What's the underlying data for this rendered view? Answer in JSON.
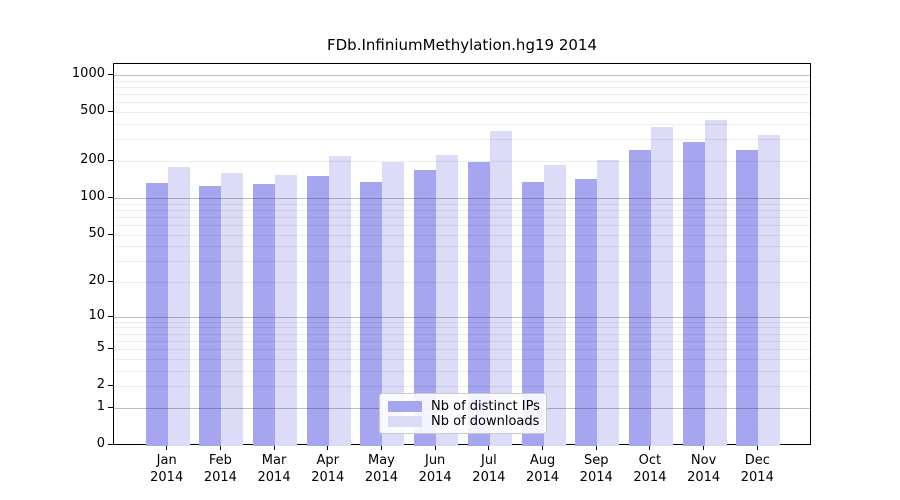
{
  "chart_data": {
    "type": "bar",
    "title": "FDb.InfiniumMethylation.hg19 2014",
    "categories": [
      "Jan",
      "Feb",
      "Mar",
      "Apr",
      "May",
      "Jun",
      "Jul",
      "Aug",
      "Sep",
      "Oct",
      "Nov",
      "Dec"
    ],
    "x_tick_second_line": "2014",
    "series": [
      {
        "name": "Nb of distinct IPs",
        "color": "#a5a5f0",
        "values": [
          133,
          126,
          129,
          151,
          135,
          170,
          197,
          135,
          144,
          245,
          285,
          245
        ]
      },
      {
        "name": "Nb of downloads",
        "color": "#dcdcf8",
        "values": [
          178,
          160,
          154,
          219,
          195,
          224,
          350,
          187,
          205,
          380,
          430,
          325
        ]
      }
    ],
    "yscale": "log1p",
    "yticks": [
      0,
      1,
      2,
      5,
      10,
      20,
      50,
      100,
      200,
      500,
      1000
    ],
    "ylim": [
      0,
      1230
    ],
    "grid": "on",
    "legend_position": "lower center"
  }
}
